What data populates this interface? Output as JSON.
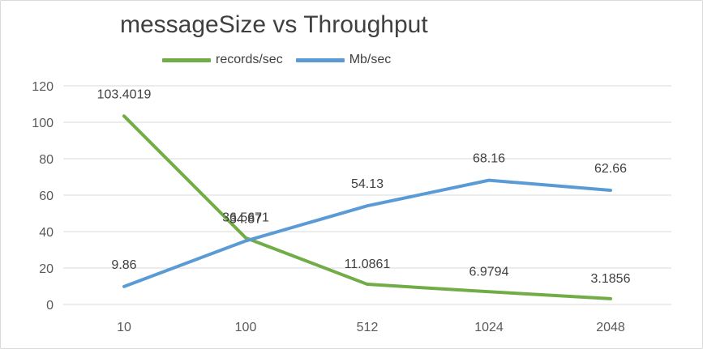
{
  "chart_data": {
    "type": "line",
    "title": "messageSize vs Throughput",
    "xlabel": "",
    "ylabel": "",
    "categories": [
      "10",
      "100",
      "512",
      "1024",
      "2048"
    ],
    "ylim": [
      0,
      120
    ],
    "yticks": [
      "0",
      "20",
      "40",
      "60",
      "80",
      "100",
      "120"
    ],
    "grid": true,
    "legend_position": "top",
    "series": [
      {
        "name": "records/sec",
        "color": "#70ad47",
        "values": [
          103.4019,
          36.5671,
          11.0861,
          6.9794,
          3.1856
        ],
        "labels": [
          "103.4019",
          "36.5671",
          "11.0861",
          "6.9794",
          "3.1856"
        ]
      },
      {
        "name": "Mb/sec",
        "color": "#5b9bd5",
        "values": [
          9.86,
          34.87,
          54.13,
          68.16,
          62.66
        ],
        "labels": [
          "9.86",
          "34.87",
          "54.13",
          "68.16",
          "62.66"
        ]
      }
    ]
  }
}
